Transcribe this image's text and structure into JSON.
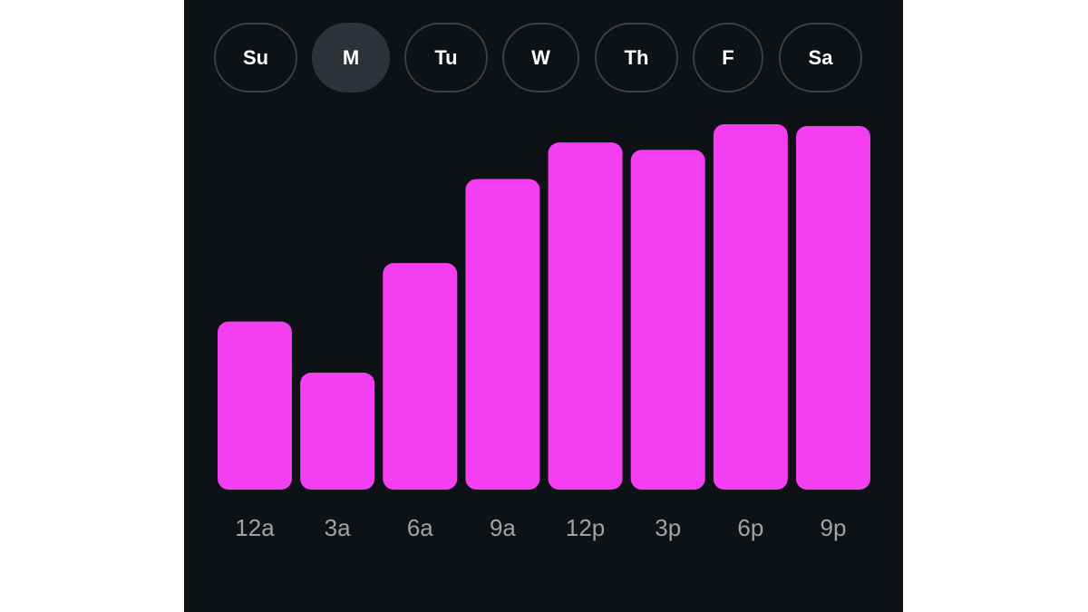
{
  "days": {
    "items": [
      {
        "label": "Su",
        "selected": false
      },
      {
        "label": "M",
        "selected": true
      },
      {
        "label": "Tu",
        "selected": false
      },
      {
        "label": "W",
        "selected": false
      },
      {
        "label": "Th",
        "selected": false
      },
      {
        "label": "F",
        "selected": false
      },
      {
        "label": "Sa",
        "selected": false
      }
    ]
  },
  "colors": {
    "background": "#0e1116",
    "bar": "#f43ef1",
    "tick_label": "#9ea3ab",
    "pill_border": "#3b3f46",
    "pill_selected": "#2f3339"
  },
  "chart_data": {
    "type": "bar",
    "categories": [
      "12a",
      "3a",
      "6a",
      "9a",
      "12p",
      "3p",
      "6p",
      "9p"
    ],
    "values": [
      46,
      32,
      62,
      85,
      95,
      93,
      100,
      99.5
    ],
    "ylim": [
      0,
      100
    ],
    "grid": false,
    "legend": "none"
  }
}
